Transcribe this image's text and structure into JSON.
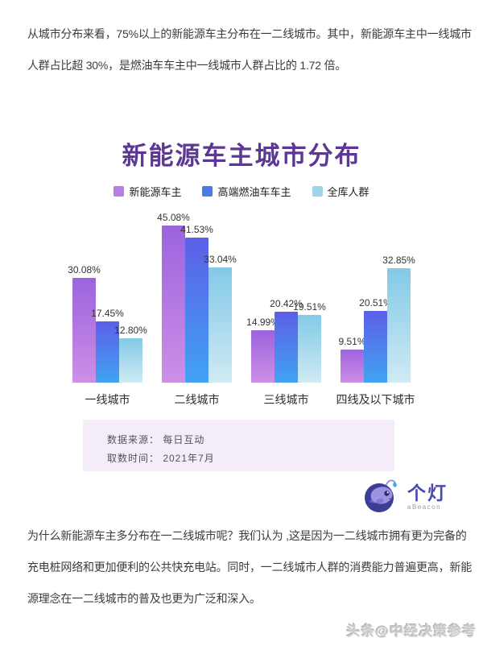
{
  "page": {
    "intro_paragraph": {
      "lines": [
        "从城市分布来看，75%以上的新能源车主分布在一二线城市。其中，新能源车主中一线城市",
        "人群占比超 30%，是燃油车车主中一线城市人群占比的 1.72 倍。"
      ]
    },
    "outro_paragraph": {
      "lines": [
        "为什么新能源车主多分布在一二线城市呢？我们认为 ,这是因为一二线城市拥有更为完备的",
        "充电桩网络和更加便利的公共快充电站。同时，一二线城市人群的消费能力普遍更高，新能",
        "源理念在一二线城市的普及也更为广泛和深入。"
      ]
    },
    "watermark": "头条@中经决策参考"
  },
  "chart": {
    "title": "新能源车主城市分布",
    "title_color": "#5d3796",
    "legend": [
      {
        "label": "新能源车主",
        "color": "#b77fe2"
      },
      {
        "label": "高端燃油车车主",
        "color": "#4b79e8"
      },
      {
        "label": "全库人群",
        "color": "#9fd4ea"
      }
    ],
    "source_box": {
      "lines": [
        "数据来源： 每日互动",
        "取数时间： 2021年7月"
      ]
    },
    "logo": {
      "name": "个灯",
      "subtitle": "aBeacon"
    }
  },
  "chart_data": {
    "type": "bar",
    "title": "新能源车主城市分布",
    "categories": [
      "一线城市",
      "二线城市",
      "三线城市",
      "四线及以下城市"
    ],
    "series": [
      {
        "name": "新能源车主",
        "values": [
          30.08,
          45.08,
          14.99,
          9.51
        ],
        "gradient": [
          "#9c63de",
          "#cd8fe6"
        ]
      },
      {
        "name": "高端燃油车车主",
        "values": [
          17.45,
          41.53,
          20.42,
          20.51
        ],
        "gradient": [
          "#5c5fe8",
          "#41a3f2"
        ]
      },
      {
        "name": "全库人群",
        "values": [
          12.8,
          33.04,
          19.51,
          32.85
        ],
        "gradient": [
          "#84c9e8",
          "#cfeaf3"
        ]
      }
    ],
    "unit": "%",
    "value_labels": true,
    "ylim": [
      0,
      50
    ],
    "grid": false,
    "legend_position": "top"
  }
}
